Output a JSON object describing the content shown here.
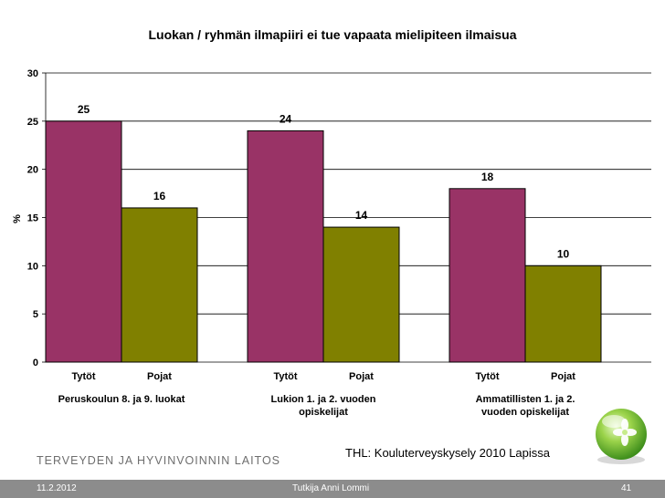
{
  "chart_data": {
    "type": "bar",
    "title": "Luokan / ryhmän ilmapiiri ei tue vapaata mielipiteen ilmaisua",
    "ylabel": "%",
    "xlabel": "",
    "ylim": [
      0,
      30
    ],
    "yticks": [
      0,
      5,
      10,
      15,
      20,
      25,
      30
    ],
    "grid": true,
    "groups": [
      {
        "label": "Peruskoulun 8. ja 9. luokat",
        "bars": [
          {
            "category": "Tytöt",
            "value": 25,
            "color": "#993366"
          },
          {
            "category": "Pojat",
            "value": 16,
            "color": "#808000"
          }
        ]
      },
      {
        "label": "Lukion 1. ja 2. vuoden opiskelijat",
        "bars": [
          {
            "category": "Tytöt",
            "value": 24,
            "color": "#993366"
          },
          {
            "category": "Pojat",
            "value": 14,
            "color": "#808000"
          }
        ]
      },
      {
        "label": "Ammatillisten 1. ja 2. vuoden opiskelijat",
        "bars": [
          {
            "category": "Tytöt",
            "value": 18,
            "color": "#993366"
          },
          {
            "category": "Pojat",
            "value": 10,
            "color": "#808000"
          }
        ]
      }
    ]
  },
  "source_note": "THL: Kouluterveyskysely 2010 Lapissa",
  "org_name": "TERVEYDEN JA HYVINVOINNIN LAITOS",
  "footer": {
    "date": "11.2.2012",
    "author": "Tutkija Anni Lommi",
    "page": "41"
  }
}
